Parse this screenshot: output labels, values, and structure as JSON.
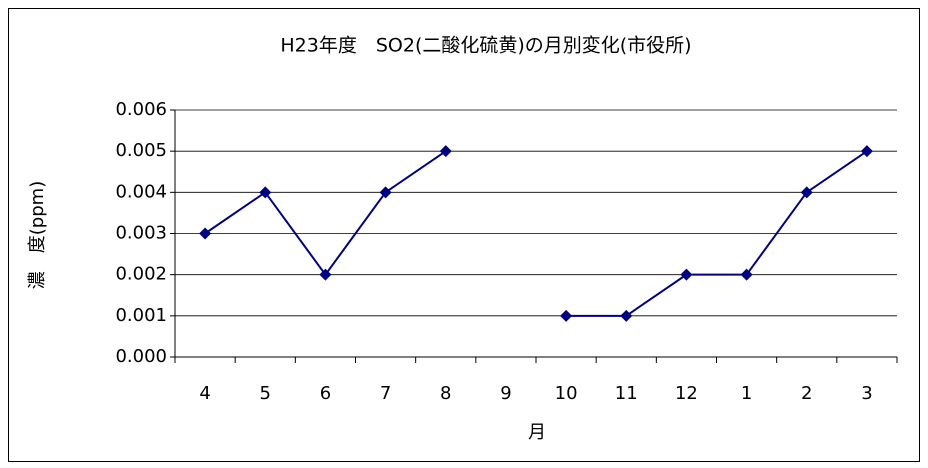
{
  "chart_data": {
    "type": "line",
    "title": "H23年度　SO2(二酸化硫黄)の月別変化(市役所)",
    "x_label": "月",
    "y_label": "濃　度(ppm)",
    "categories": [
      "4",
      "5",
      "6",
      "7",
      "8",
      "9",
      "10",
      "11",
      "12",
      "1",
      "2",
      "3"
    ],
    "series": [
      {
        "color": "#000080",
        "values": [
          0.003,
          0.004,
          0.002,
          0.004,
          0.005,
          null,
          0.001,
          0.001,
          0.002,
          0.002,
          0.004,
          0.005
        ]
      }
    ],
    "ylim": [
      0,
      0.006
    ],
    "yticks": [
      {
        "value": 0,
        "label": "0.000"
      },
      0.001,
      0.002,
      0.003,
      0.004,
      0.005,
      0.006
    ],
    "grid": true
  }
}
